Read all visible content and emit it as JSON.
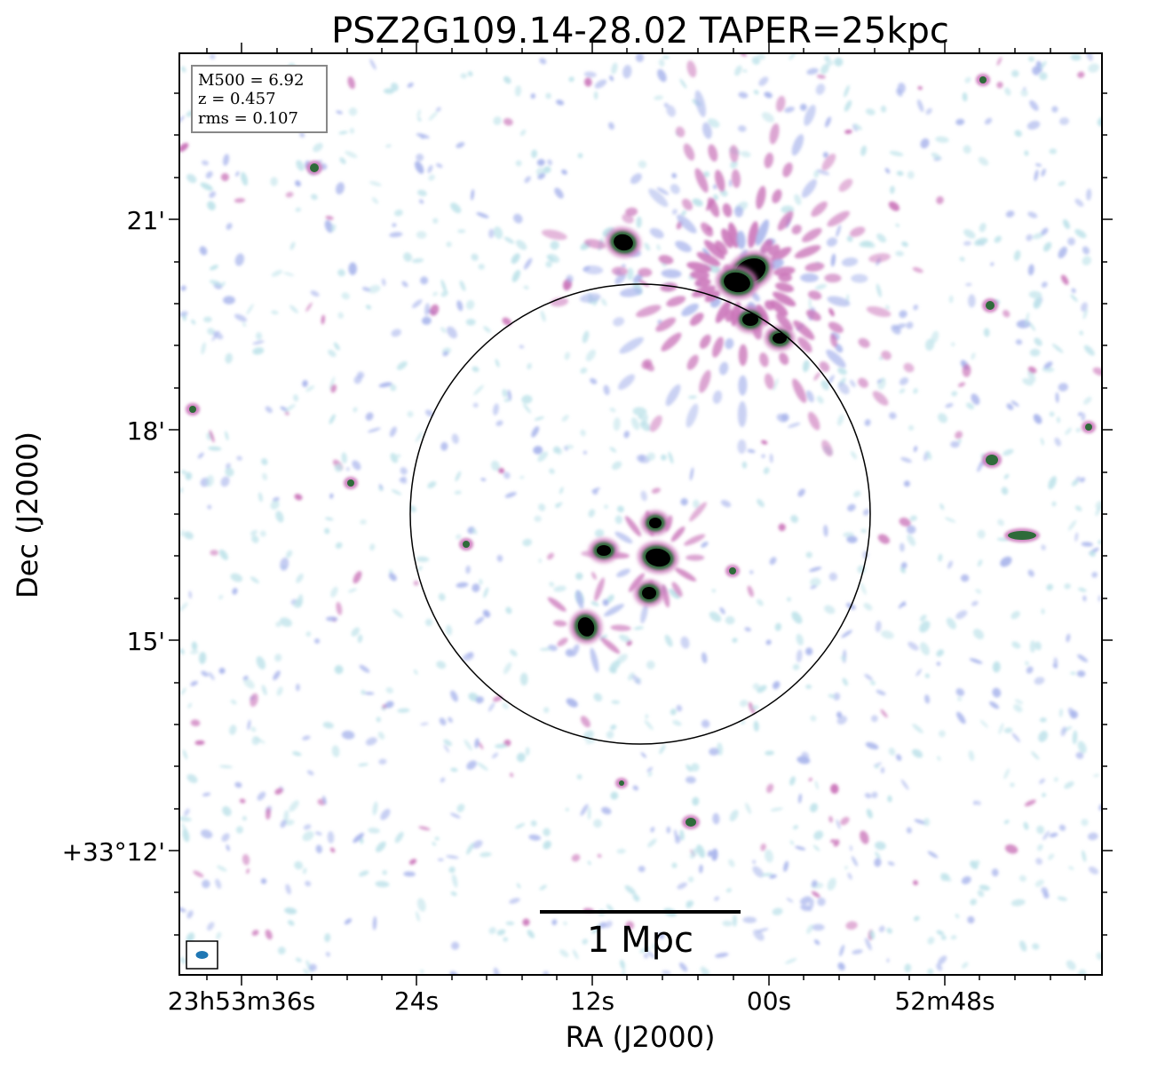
{
  "title": "PSZ2G109.14-28.02 TAPER=25kpc",
  "info_box": {
    "m500": "M500 = 6.92",
    "z": "z = 0.457",
    "rms": "rms = 0.107"
  },
  "x_axis": {
    "label": "RA (J2000)",
    "ticks": [
      "23h53m36s",
      "24s",
      "12s",
      "00s",
      "52m48s"
    ]
  },
  "y_axis": {
    "label": "Dec (J2000)",
    "ticks": [
      "21'",
      "18'",
      "15'",
      "+33°12'"
    ]
  },
  "scale_bar": {
    "label": "1 Mpc"
  },
  "beam": {
    "color": "#1f77b4"
  },
  "colors": {
    "frame": "#000000",
    "noise_light": "#bfe3ea",
    "noise_blue": "#a9b5ec",
    "emission_magenta": "#c972b8",
    "emission_green": "#2f6b3a",
    "source_core": "#000000"
  }
}
